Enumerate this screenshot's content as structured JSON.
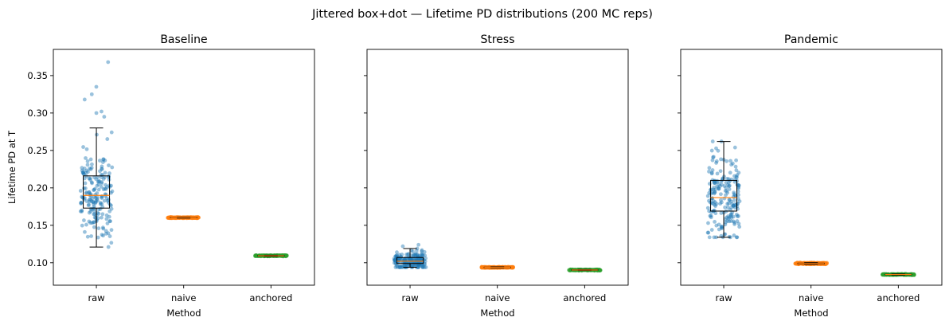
{
  "figure": {
    "suptitle": "Jittered box+dot — Lifetime PD distributions (200 MC reps)"
  },
  "colors": {
    "raw": "#1f77b4",
    "naive": "#ff7f0e",
    "anchored": "#2ca02c",
    "median": "#ff7f0e",
    "box": "#000000"
  },
  "chart_data": [
    {
      "type": "box",
      "title": "Baseline",
      "xlabel": "Method",
      "ylabel": "Lifetime PD at T",
      "categories": [
        "raw",
        "naive",
        "anchored"
      ],
      "ylim": [
        0.07,
        0.385
      ],
      "yticks": [
        0.1,
        0.15,
        0.2,
        0.25,
        0.3,
        0.35
      ],
      "ytick_labels": [
        "0.10",
        "0.15",
        "0.20",
        "0.25",
        "0.30",
        "0.35"
      ],
      "n_reps": 200,
      "boxes": [
        {
          "category": "raw",
          "whisker_low": 0.121,
          "q1": 0.173,
          "median": 0.19,
          "q3": 0.216,
          "whisker_high": 0.28,
          "outliers": [
            0.295,
            0.3,
            0.302,
            0.318,
            0.325,
            0.335,
            0.368
          ]
        },
        {
          "category": "naive",
          "whisker_low": 0.1595,
          "q1": 0.16,
          "median": 0.1602,
          "q3": 0.1605,
          "whisker_high": 0.161,
          "outliers": []
        },
        {
          "category": "anchored",
          "whisker_low": 0.1085,
          "q1": 0.109,
          "median": 0.1093,
          "q3": 0.1096,
          "whisker_high": 0.11,
          "outliers": []
        }
      ]
    },
    {
      "type": "box",
      "title": "Stress",
      "xlabel": "Method",
      "ylabel": "",
      "categories": [
        "raw",
        "naive",
        "anchored"
      ],
      "ylim": [
        0.07,
        0.385
      ],
      "yticks": [
        0.1,
        0.15,
        0.2,
        0.25,
        0.3,
        0.35
      ],
      "ytick_labels": [
        "",
        "",
        "",
        "",
        "",
        ""
      ],
      "n_reps": 200,
      "boxes": [
        {
          "category": "raw",
          "whisker_low": 0.094,
          "q1": 0.099,
          "median": 0.102,
          "q3": 0.107,
          "whisker_high": 0.119,
          "outliers": [
            0.122,
            0.124
          ]
        },
        {
          "category": "naive",
          "whisker_low": 0.093,
          "q1": 0.0935,
          "median": 0.0938,
          "q3": 0.0941,
          "whisker_high": 0.0945,
          "outliers": []
        },
        {
          "category": "anchored",
          "whisker_low": 0.0895,
          "q1": 0.09,
          "median": 0.0903,
          "q3": 0.0906,
          "whisker_high": 0.091,
          "outliers": []
        }
      ]
    },
    {
      "type": "box",
      "title": "Pandemic",
      "xlabel": "Method",
      "ylabel": "",
      "categories": [
        "raw",
        "naive",
        "anchored"
      ],
      "ylim": [
        0.07,
        0.385
      ],
      "yticks": [
        0.1,
        0.15,
        0.2,
        0.25,
        0.3,
        0.35
      ],
      "ytick_labels": [
        "",
        "",
        "",
        "",
        "",
        ""
      ],
      "n_reps": 200,
      "boxes": [
        {
          "category": "raw",
          "whisker_low": 0.134,
          "q1": 0.169,
          "median": 0.187,
          "q3": 0.21,
          "whisker_high": 0.262,
          "outliers": []
        },
        {
          "category": "naive",
          "whisker_low": 0.098,
          "q1": 0.0985,
          "median": 0.099,
          "q3": 0.0994,
          "whisker_high": 0.1,
          "outliers": []
        },
        {
          "category": "anchored",
          "whisker_low": 0.0835,
          "q1": 0.084,
          "median": 0.0843,
          "q3": 0.0846,
          "whisker_high": 0.085,
          "outliers": []
        }
      ]
    }
  ]
}
